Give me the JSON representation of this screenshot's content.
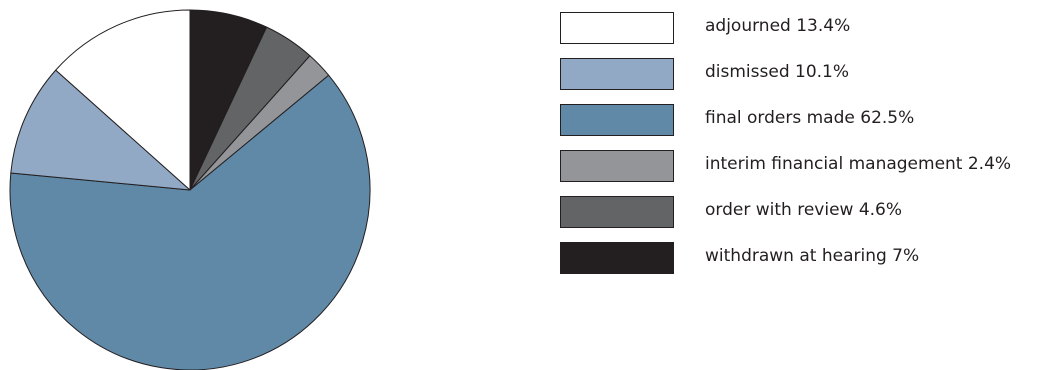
{
  "chart_data": {
    "type": "pie",
    "slices": [
      {
        "label": "withdrawn at hearing 7%",
        "value": 7.0,
        "color": "#231f20"
      },
      {
        "label": "order with review 4.6%",
        "value": 4.6,
        "color": "#636466"
      },
      {
        "label": "interim financial management 2.4%",
        "value": 2.4,
        "color": "#939598"
      },
      {
        "label": "final orders made 62.5%",
        "value": 62.5,
        "color": "#6089a8"
      },
      {
        "label": "dismissed 10.1%",
        "value": 10.1,
        "color": "#91a9c4"
      },
      {
        "label": "adjourned 13.4%",
        "value": 13.4,
        "color": "#ffffff"
      }
    ],
    "legend": {
      "placement": "right",
      "items": [
        {
          "label": "adjourned 13.4%",
          "color": "#ffffff"
        },
        {
          "label": "dismissed 10.1%",
          "color": "#91a9c4"
        },
        {
          "label": "final orders made 62.5%",
          "color": "#6089a8"
        },
        {
          "label": "interim financial management 2.4%",
          "color": "#939598"
        },
        {
          "label": "order with review 4.6%",
          "color": "#636466"
        },
        {
          "label": "withdrawn at hearing 7%",
          "color": "#231f20"
        }
      ]
    },
    "start": "12 o'clock",
    "direction": "clockwise",
    "edge_color": "#231f20"
  }
}
